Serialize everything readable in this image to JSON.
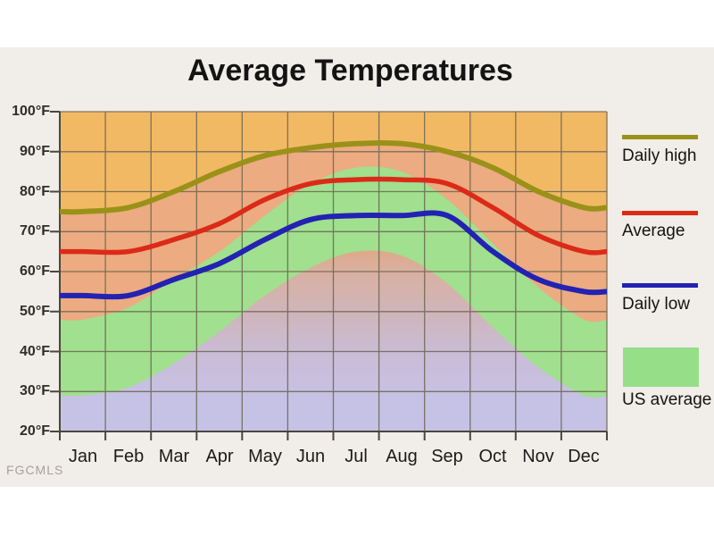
{
  "watermark": "FGCMLS",
  "chart_data": {
    "type": "line",
    "title": "Average Temperatures",
    "categories": [
      "Jan",
      "Feb",
      "Mar",
      "Apr",
      "May",
      "Jun",
      "Jul",
      "Aug",
      "Sep",
      "Oct",
      "Nov",
      "Dec"
    ],
    "ylim": [
      20,
      100
    ],
    "y_tick_step": 10,
    "y_tick_labels": [
      "100°F",
      "90°F",
      "80°F",
      "70°F",
      "60°F",
      "50°F",
      "40°F",
      "30°F",
      "20°F"
    ],
    "grid": true,
    "legend_position": "right",
    "series": [
      {
        "name": "Daily high",
        "color": "#9a9119",
        "values": [
          75,
          76,
          80,
          85,
          89,
          91,
          92,
          92,
          90,
          86,
          80,
          76
        ]
      },
      {
        "name": "Average",
        "color": "#dc2a18",
        "values": [
          65,
          65,
          68,
          72,
          78,
          82,
          83,
          83,
          82,
          76,
          69,
          65
        ]
      },
      {
        "name": "Daily low",
        "color": "#2322b2",
        "values": [
          54,
          54,
          58,
          62,
          68,
          73,
          74,
          74,
          74,
          65,
          58,
          55
        ]
      }
    ],
    "us_average_band": {
      "name": "US average",
      "fill_color": "#a0e08e",
      "high_values": [
        48,
        51,
        58,
        65,
        74,
        82,
        86,
        85,
        78,
        67,
        56,
        48
      ],
      "low_values": [
        29,
        31,
        37,
        45,
        54,
        61,
        65,
        64,
        57,
        46,
        36,
        29
      ]
    },
    "colors": {
      "plot_background": "#f2b964",
      "below_high_fill": "#ecab80",
      "gridline": "#6b6450",
      "axis": "#4a473c",
      "low_fill_gradient": [
        {
          "offset": 0.0,
          "color": "#e0a584"
        },
        {
          "offset": 0.42,
          "color": "#dfa884"
        },
        {
          "offset": 0.5,
          "color": "#d9b0a0"
        },
        {
          "offset": 0.63,
          "color": "#cfb5bb"
        },
        {
          "offset": 0.77,
          "color": "#c9bdd8"
        },
        {
          "offset": 0.9,
          "color": "#c6c2e5"
        },
        {
          "offset": 1.0,
          "color": "#c6c2e6"
        }
      ]
    }
  },
  "legend": {
    "items": [
      {
        "label": "Daily high",
        "swatch": "line",
        "color": "#9a9119"
      },
      {
        "label": "Average",
        "swatch": "line",
        "color": "#dc2a18"
      },
      {
        "label": "Daily low",
        "swatch": "line",
        "color": "#2322b2"
      },
      {
        "label": "US average",
        "swatch": "area",
        "color": "#96de87"
      }
    ]
  }
}
